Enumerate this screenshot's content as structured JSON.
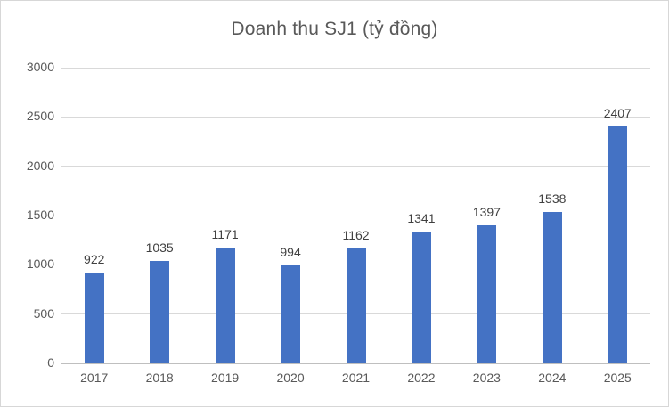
{
  "chart_data": {
    "type": "bar",
    "title": "Doanh thu SJ1 (tỷ đồng)",
    "categories": [
      "2017",
      "2018",
      "2019",
      "2020",
      "2021",
      "2022",
      "2023",
      "2024",
      "2025"
    ],
    "values": [
      922,
      1035,
      1171,
      994,
      1162,
      1341,
      1397,
      1538,
      2407
    ],
    "xlabel": "",
    "ylabel": "",
    "ylim": [
      0,
      3000
    ],
    "yticks": [
      0,
      500,
      1000,
      1500,
      2000,
      2500,
      3000
    ],
    "grid": true,
    "legend_position": "none",
    "data_labels": true,
    "colors": {
      "bar": "#4472c4",
      "gridline": "#d9d9d9",
      "axis_line": "#bfbfbf",
      "axis_label": "#595959",
      "data_label": "#404040",
      "title": "#595959",
      "chart_border": "#d7d7d7",
      "background": "#ffffff"
    }
  }
}
